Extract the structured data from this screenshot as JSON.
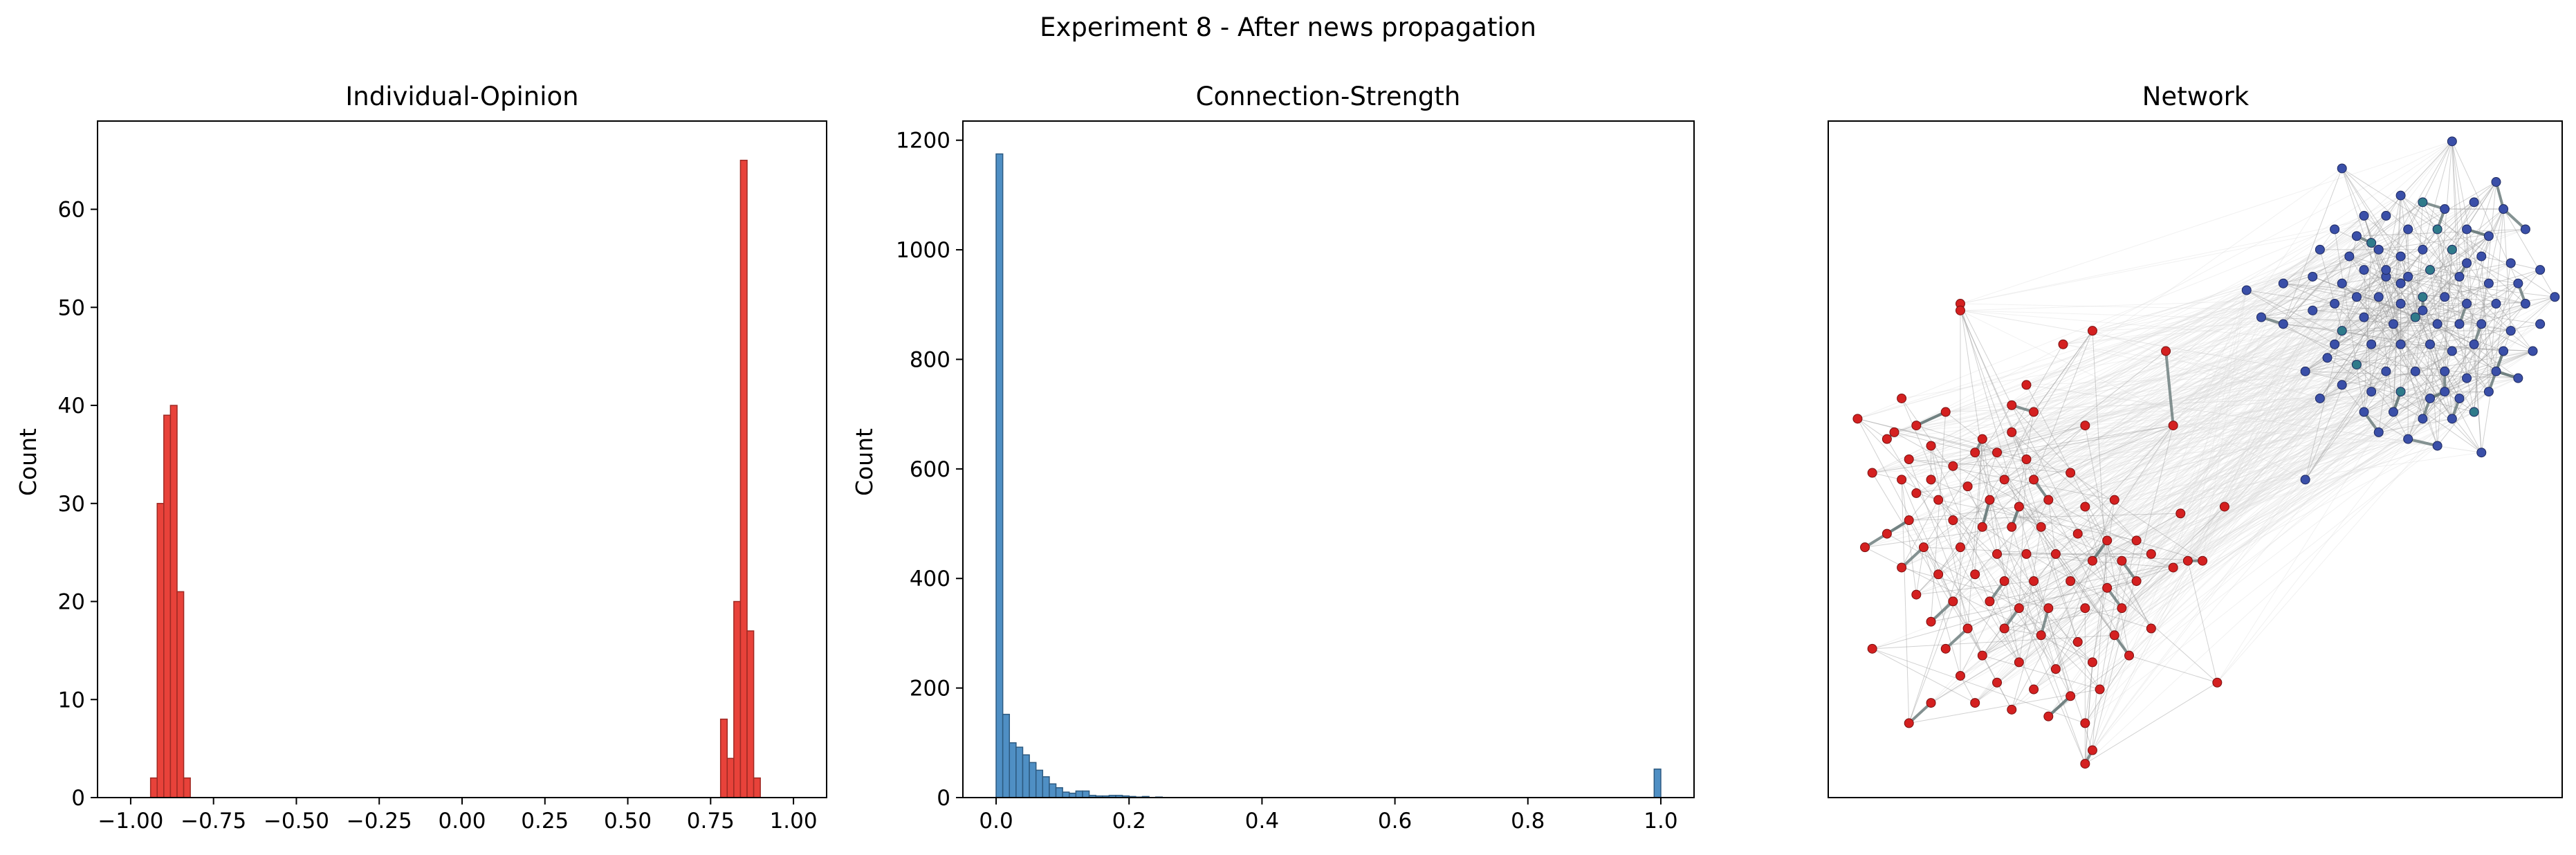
{
  "figure": {
    "suptitle": "Experiment 8 - After news propagation"
  },
  "chart_data": [
    {
      "type": "bar",
      "title": "Individual-Opinion",
      "xlabel": "",
      "ylabel": "Count",
      "xlim": [
        -1.1,
        1.1
      ],
      "ylim": [
        0,
        69
      ],
      "bar_color": "#e8423a",
      "edge_color": "#9e2a24",
      "bin_width": 0.02,
      "xticks": [
        -1.0,
        -0.75,
        -0.5,
        -0.25,
        0.0,
        0.25,
        0.5,
        0.75,
        1.0
      ],
      "xtick_labels": [
        "−1.00",
        "−0.75",
        "−0.50",
        "−0.25",
        "0.00",
        "0.25",
        "0.50",
        "0.75",
        "1.00"
      ],
      "yticks": [
        0,
        10,
        20,
        30,
        40,
        50,
        60
      ],
      "ytick_labels": [
        "0",
        "10",
        "20",
        "30",
        "40",
        "50",
        "60"
      ],
      "bins": [
        {
          "left": -0.94,
          "count": 2
        },
        {
          "left": -0.92,
          "count": 30
        },
        {
          "left": -0.9,
          "count": 39
        },
        {
          "left": -0.88,
          "count": 40
        },
        {
          "left": -0.86,
          "count": 21
        },
        {
          "left": -0.84,
          "count": 2
        },
        {
          "left": 0.78,
          "count": 8
        },
        {
          "left": 0.8,
          "count": 4
        },
        {
          "left": 0.82,
          "count": 20
        },
        {
          "left": 0.84,
          "count": 65
        },
        {
          "left": 0.86,
          "count": 17
        },
        {
          "left": 0.88,
          "count": 2
        }
      ]
    },
    {
      "type": "bar",
      "title": "Connection-Strength",
      "xlabel": "",
      "ylabel": "Count",
      "xlim": [
        -0.05,
        1.05
      ],
      "ylim": [
        0,
        1235
      ],
      "bar_color": "#4f8fc4",
      "edge_color": "#2d5a80",
      "bin_width": 0.01,
      "xticks": [
        0.0,
        0.2,
        0.4,
        0.6,
        0.8,
        1.0
      ],
      "xtick_labels": [
        "0.0",
        "0.2",
        "0.4",
        "0.6",
        "0.8",
        "1.0"
      ],
      "yticks": [
        0,
        200,
        400,
        600,
        800,
        1000,
        1200
      ],
      "ytick_labels": [
        "0",
        "200",
        "400",
        "600",
        "800",
        "1000",
        "1200"
      ],
      "bins": [
        {
          "left": 0.0,
          "count": 1175
        },
        {
          "left": 0.01,
          "count": 152
        },
        {
          "left": 0.02,
          "count": 100
        },
        {
          "left": 0.03,
          "count": 92
        },
        {
          "left": 0.04,
          "count": 78
        },
        {
          "left": 0.05,
          "count": 64
        },
        {
          "left": 0.06,
          "count": 50
        },
        {
          "left": 0.07,
          "count": 38
        },
        {
          "left": 0.08,
          "count": 25
        },
        {
          "left": 0.09,
          "count": 18
        },
        {
          "left": 0.1,
          "count": 10
        },
        {
          "left": 0.11,
          "count": 8
        },
        {
          "left": 0.12,
          "count": 12
        },
        {
          "left": 0.13,
          "count": 12
        },
        {
          "left": 0.14,
          "count": 4
        },
        {
          "left": 0.15,
          "count": 3
        },
        {
          "left": 0.16,
          "count": 3
        },
        {
          "left": 0.17,
          "count": 4
        },
        {
          "left": 0.18,
          "count": 4
        },
        {
          "left": 0.19,
          "count": 3
        },
        {
          "left": 0.2,
          "count": 2
        },
        {
          "left": 0.21,
          "count": 1
        },
        {
          "left": 0.22,
          "count": 2
        },
        {
          "left": 0.24,
          "count": 1
        },
        {
          "left": 0.99,
          "count": 52
        }
      ]
    },
    {
      "type": "scatter",
      "title": "Network",
      "xlabel": "",
      "ylabel": "",
      "axis_ticks": false,
      "node_colors": {
        "cluster_a": "#3a4fa8",
        "cluster_a_alt": "#2f7a8a",
        "cluster_b": "#d42020"
      },
      "edge_colors": {
        "weak": "#d6d6d6",
        "medium": "#9a9a9a",
        "strong": "#6f7f7f"
      },
      "cluster_a_nodes": [
        [
          0.85,
          0.03
        ],
        [
          0.7,
          0.07
        ],
        [
          0.91,
          0.09
        ],
        [
          0.78,
          0.11
        ],
        [
          0.81,
          0.12
        ],
        [
          0.88,
          0.12
        ],
        [
          0.73,
          0.14
        ],
        [
          0.76,
          0.14
        ],
        [
          0.84,
          0.13
        ],
        [
          0.92,
          0.13
        ],
        [
          0.69,
          0.16
        ],
        [
          0.72,
          0.17
        ],
        [
          0.79,
          0.16
        ],
        [
          0.83,
          0.16
        ],
        [
          0.87,
          0.16
        ],
        [
          0.9,
          0.17
        ],
        [
          0.95,
          0.16
        ],
        [
          0.67,
          0.19
        ],
        [
          0.71,
          0.2
        ],
        [
          0.75,
          0.19
        ],
        [
          0.78,
          0.2
        ],
        [
          0.81,
          0.19
        ],
        [
          0.85,
          0.19
        ],
        [
          0.89,
          0.2
        ],
        [
          0.93,
          0.21
        ],
        [
          0.97,
          0.22
        ],
        [
          0.66,
          0.23
        ],
        [
          0.7,
          0.24
        ],
        [
          0.73,
          0.22
        ],
        [
          0.76,
          0.23
        ],
        [
          0.79,
          0.23
        ],
        [
          0.82,
          0.22
        ],
        [
          0.86,
          0.23
        ],
        [
          0.9,
          0.24
        ],
        [
          0.94,
          0.24
        ],
        [
          0.62,
          0.24
        ],
        [
          0.69,
          0.27
        ],
        [
          0.72,
          0.26
        ],
        [
          0.75,
          0.26
        ],
        [
          0.78,
          0.27
        ],
        [
          0.81,
          0.26
        ],
        [
          0.84,
          0.26
        ],
        [
          0.87,
          0.27
        ],
        [
          0.91,
          0.27
        ],
        [
          0.95,
          0.27
        ],
        [
          0.99,
          0.26
        ],
        [
          0.66,
          0.28
        ],
        [
          0.73,
          0.29
        ],
        [
          0.77,
          0.3
        ],
        [
          0.8,
          0.29
        ],
        [
          0.83,
          0.3
        ],
        [
          0.86,
          0.3
        ],
        [
          0.89,
          0.3
        ],
        [
          0.93,
          0.31
        ],
        [
          0.97,
          0.3
        ],
        [
          0.62,
          0.3
        ],
        [
          0.57,
          0.25
        ],
        [
          0.59,
          0.29
        ],
        [
          0.7,
          0.31
        ],
        [
          0.74,
          0.33
        ],
        [
          0.78,
          0.33
        ],
        [
          0.82,
          0.33
        ],
        [
          0.85,
          0.34
        ],
        [
          0.88,
          0.33
        ],
        [
          0.92,
          0.34
        ],
        [
          0.96,
          0.34
        ],
        [
          0.68,
          0.35
        ],
        [
          0.72,
          0.36
        ],
        [
          0.76,
          0.37
        ],
        [
          0.8,
          0.37
        ],
        [
          0.84,
          0.37
        ],
        [
          0.87,
          0.38
        ],
        [
          0.91,
          0.37
        ],
        [
          0.65,
          0.37
        ],
        [
          0.7,
          0.39
        ],
        [
          0.74,
          0.4
        ],
        [
          0.78,
          0.4
        ],
        [
          0.82,
          0.41
        ],
        [
          0.86,
          0.41
        ],
        [
          0.9,
          0.4
        ],
        [
          0.94,
          0.38
        ],
        [
          0.73,
          0.43
        ],
        [
          0.77,
          0.43
        ],
        [
          0.81,
          0.44
        ],
        [
          0.85,
          0.44
        ],
        [
          0.88,
          0.43
        ],
        [
          0.67,
          0.41
        ],
        [
          0.79,
          0.47
        ],
        [
          0.83,
          0.48
        ],
        [
          0.89,
          0.49
        ],
        [
          0.75,
          0.46
        ],
        [
          0.65,
          0.53
        ],
        [
          0.76,
          0.22
        ],
        [
          0.81,
          0.28
        ],
        [
          0.74,
          0.18
        ],
        [
          0.87,
          0.21
        ],
        [
          0.69,
          0.33
        ],
        [
          0.84,
          0.4
        ],
        [
          0.78,
          0.24
        ]
      ],
      "cluster_b_nodes": [
        [
          0.18,
          0.27
        ],
        [
          0.18,
          0.28
        ],
        [
          0.32,
          0.33
        ],
        [
          0.36,
          0.31
        ],
        [
          0.46,
          0.34
        ],
        [
          0.27,
          0.39
        ],
        [
          0.1,
          0.41
        ],
        [
          0.25,
          0.42
        ],
        [
          0.04,
          0.44
        ],
        [
          0.12,
          0.45
        ],
        [
          0.16,
          0.43
        ],
        [
          0.28,
          0.43
        ],
        [
          0.09,
          0.46
        ],
        [
          0.08,
          0.47
        ],
        [
          0.14,
          0.48
        ],
        [
          0.21,
          0.47
        ],
        [
          0.25,
          0.46
        ],
        [
          0.35,
          0.45
        ],
        [
          0.47,
          0.45
        ],
        [
          0.11,
          0.5
        ],
        [
          0.17,
          0.51
        ],
        [
          0.2,
          0.49
        ],
        [
          0.23,
          0.49
        ],
        [
          0.27,
          0.5
        ],
        [
          0.06,
          0.52
        ],
        [
          0.1,
          0.53
        ],
        [
          0.14,
          0.53
        ],
        [
          0.19,
          0.54
        ],
        [
          0.24,
          0.53
        ],
        [
          0.28,
          0.53
        ],
        [
          0.33,
          0.52
        ],
        [
          0.12,
          0.55
        ],
        [
          0.15,
          0.56
        ],
        [
          0.22,
          0.56
        ],
        [
          0.26,
          0.57
        ],
        [
          0.3,
          0.56
        ],
        [
          0.35,
          0.57
        ],
        [
          0.39,
          0.56
        ],
        [
          0.48,
          0.58
        ],
        [
          0.11,
          0.59
        ],
        [
          0.17,
          0.59
        ],
        [
          0.21,
          0.6
        ],
        [
          0.25,
          0.6
        ],
        [
          0.29,
          0.6
        ],
        [
          0.34,
          0.61
        ],
        [
          0.38,
          0.62
        ],
        [
          0.42,
          0.62
        ],
        [
          0.08,
          0.61
        ],
        [
          0.05,
          0.63
        ],
        [
          0.13,
          0.63
        ],
        [
          0.18,
          0.63
        ],
        [
          0.23,
          0.64
        ],
        [
          0.27,
          0.64
        ],
        [
          0.31,
          0.64
        ],
        [
          0.36,
          0.65
        ],
        [
          0.4,
          0.65
        ],
        [
          0.44,
          0.64
        ],
        [
          0.1,
          0.66
        ],
        [
          0.15,
          0.67
        ],
        [
          0.2,
          0.67
        ],
        [
          0.24,
          0.68
        ],
        [
          0.28,
          0.68
        ],
        [
          0.33,
          0.68
        ],
        [
          0.38,
          0.69
        ],
        [
          0.42,
          0.68
        ],
        [
          0.47,
          0.66
        ],
        [
          0.49,
          0.65
        ],
        [
          0.51,
          0.65
        ],
        [
          0.12,
          0.7
        ],
        [
          0.17,
          0.71
        ],
        [
          0.22,
          0.71
        ],
        [
          0.26,
          0.72
        ],
        [
          0.3,
          0.72
        ],
        [
          0.35,
          0.72
        ],
        [
          0.4,
          0.72
        ],
        [
          0.14,
          0.74
        ],
        [
          0.19,
          0.75
        ],
        [
          0.24,
          0.75
        ],
        [
          0.29,
          0.76
        ],
        [
          0.34,
          0.77
        ],
        [
          0.39,
          0.76
        ],
        [
          0.44,
          0.75
        ],
        [
          0.06,
          0.78
        ],
        [
          0.16,
          0.78
        ],
        [
          0.21,
          0.79
        ],
        [
          0.26,
          0.8
        ],
        [
          0.31,
          0.81
        ],
        [
          0.36,
          0.8
        ],
        [
          0.41,
          0.79
        ],
        [
          0.18,
          0.82
        ],
        [
          0.23,
          0.83
        ],
        [
          0.28,
          0.84
        ],
        [
          0.33,
          0.85
        ],
        [
          0.37,
          0.84
        ],
        [
          0.14,
          0.86
        ],
        [
          0.2,
          0.86
        ],
        [
          0.25,
          0.87
        ],
        [
          0.3,
          0.88
        ],
        [
          0.35,
          0.89
        ],
        [
          0.11,
          0.89
        ],
        [
          0.36,
          0.93
        ],
        [
          0.35,
          0.95
        ],
        [
          0.53,
          0.83
        ],
        [
          0.54,
          0.57
        ]
      ]
    }
  ]
}
